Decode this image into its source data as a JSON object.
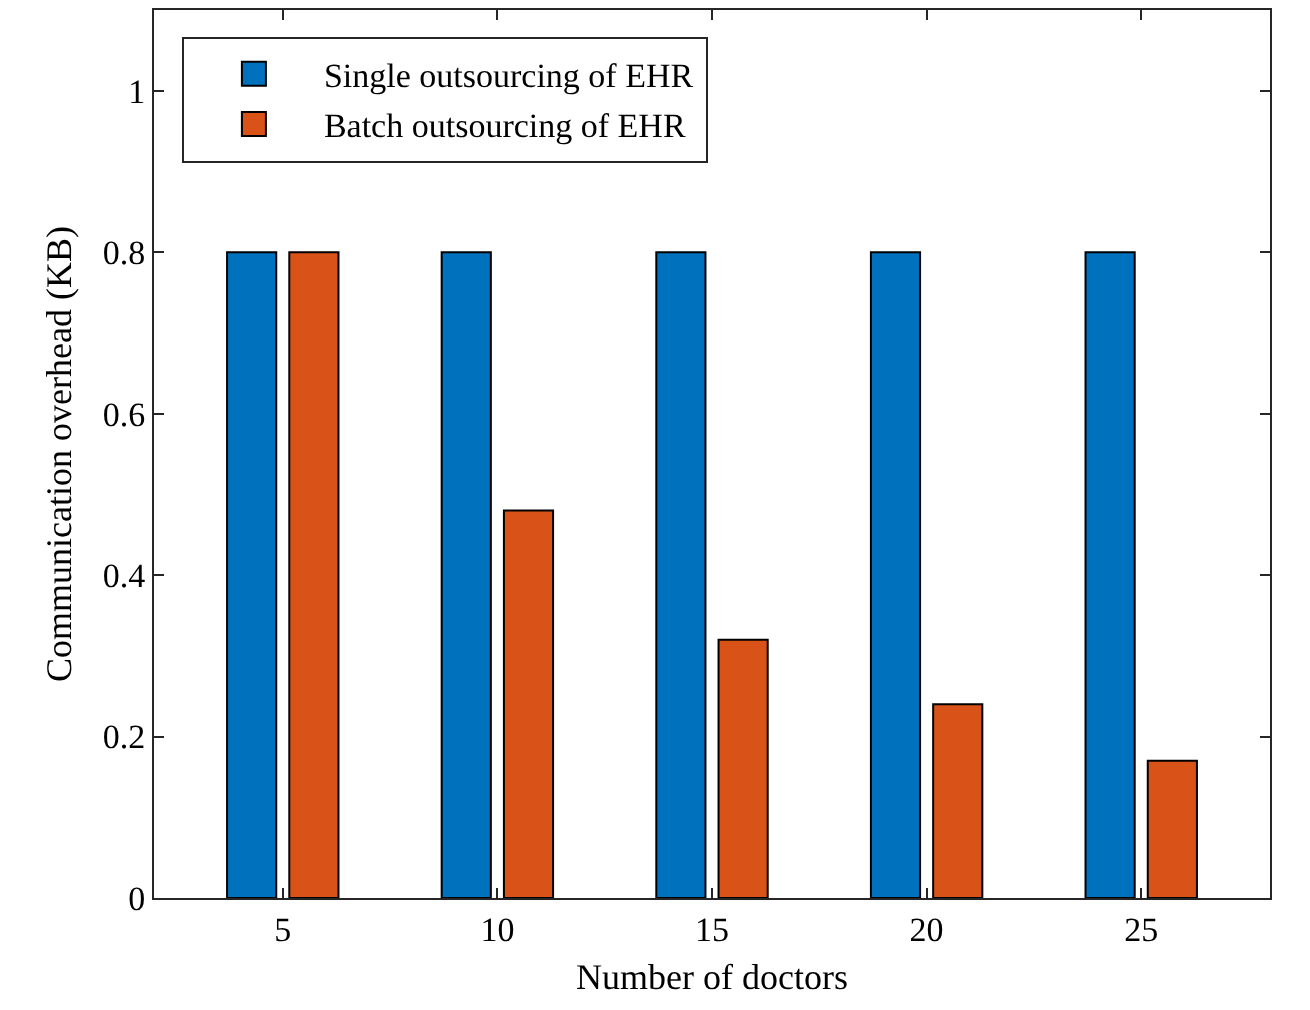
{
  "chart_data": {
    "type": "bar",
    "xlabel": "Number of doctors",
    "ylabel": "Communication overhead (KB)",
    "x": [
      5,
      10,
      15,
      20,
      25
    ],
    "xlim": [
      2,
      28
    ],
    "xticks": [
      5,
      10,
      15,
      20,
      25
    ],
    "ylim": [
      0,
      1.1
    ],
    "yticks": [
      0,
      0.2,
      0.4,
      0.6,
      0.8,
      1
    ],
    "legend": "top left",
    "series": [
      {
        "name": "Single outsourcing of EHR",
        "color": "#0072bd",
        "values": [
          0.8,
          0.8,
          0.8,
          0.8,
          0.8
        ]
      },
      {
        "name": "Batch outsourcing of EHR",
        "color": "#d95319",
        "values": [
          0.8,
          0.48,
          0.32,
          0.24,
          0.17
        ]
      }
    ]
  }
}
